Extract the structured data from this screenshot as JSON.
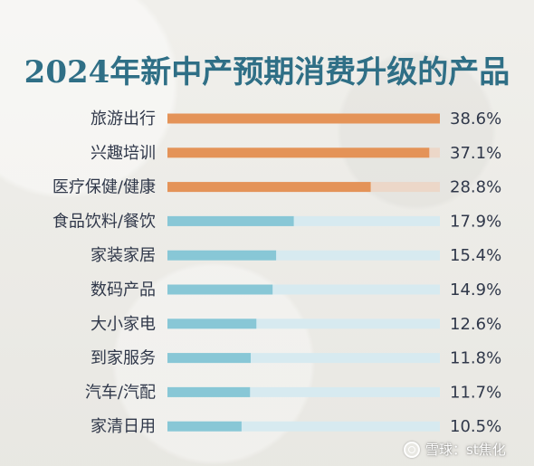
{
  "chart_data": {
    "type": "bar",
    "title": "2024年新中产预期消费升级的产品",
    "categories": [
      "旅游出行",
      "兴趣培训",
      "医疗保健/健康",
      "食品饮料/餐饮",
      "家装家居",
      "数码产品",
      "大小家电",
      "到家服务",
      "汽车/汽配",
      "家清日用"
    ],
    "values": [
      38.6,
      37.1,
      28.8,
      17.9,
      15.4,
      14.9,
      12.6,
      11.8,
      11.7,
      10.5
    ],
    "value_labels": [
      "38.6%",
      "37.1%",
      "28.8%",
      "17.9%",
      "15.4%",
      "14.9%",
      "12.6%",
      "11.8%",
      "11.7%",
      "10.5%"
    ],
    "xlim": [
      0,
      38.6
    ],
    "grid": false,
    "legend": "none",
    "colors": {
      "title": "#2f6f86",
      "top_bar": "#e49358",
      "top_track": "#ecd7c8",
      "other_bar": "#88c7d6",
      "other_track": "#d7eaf0",
      "text": "#30384a"
    }
  },
  "watermark": {
    "text": "雪球：st焦化",
    "icon": "snowball-icon"
  }
}
